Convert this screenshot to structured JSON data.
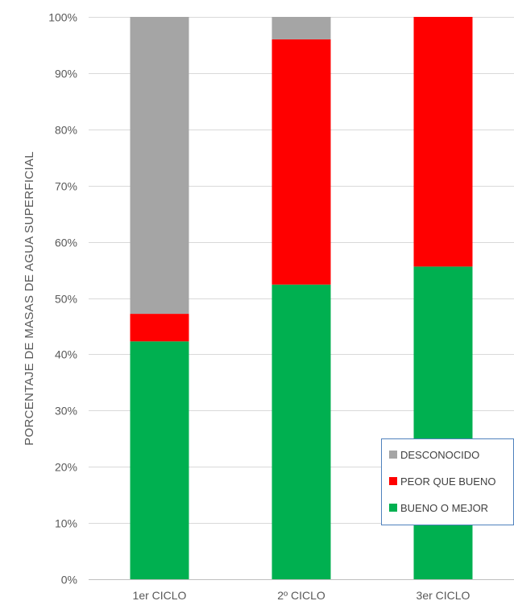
{
  "chart_data": {
    "type": "bar",
    "stacked": true,
    "percent_stacked": true,
    "categories": [
      "1er CICLO",
      "2º CICLO",
      "3er CICLO"
    ],
    "series": [
      {
        "name": "BUENO O MEJOR",
        "color": "#00B050",
        "values": [
          42.3,
          52.4,
          55.6
        ]
      },
      {
        "name": "PEOR QUE BUENO",
        "color": "#FF0000",
        "values": [
          4.9,
          43.6,
          44.4
        ]
      },
      {
        "name": "DESCONOCIDO",
        "color": "#A5A5A5",
        "values": [
          52.8,
          4.0,
          0.0
        ]
      }
    ],
    "ylabel": "PORCENTAJE DE MASAS DE AGUA SUPERFICIAL",
    "ylim": [
      0,
      100
    ],
    "yticks": [
      "0%",
      "10%",
      "20%",
      "30%",
      "40%",
      "50%",
      "60%",
      "70%",
      "80%",
      "90%",
      "100%"
    ],
    "grid": true,
    "legend_position": "bottom-right",
    "legend_order": [
      "DESCONOCIDO",
      "PEOR QUE BUENO",
      "BUENO O MEJOR"
    ]
  }
}
